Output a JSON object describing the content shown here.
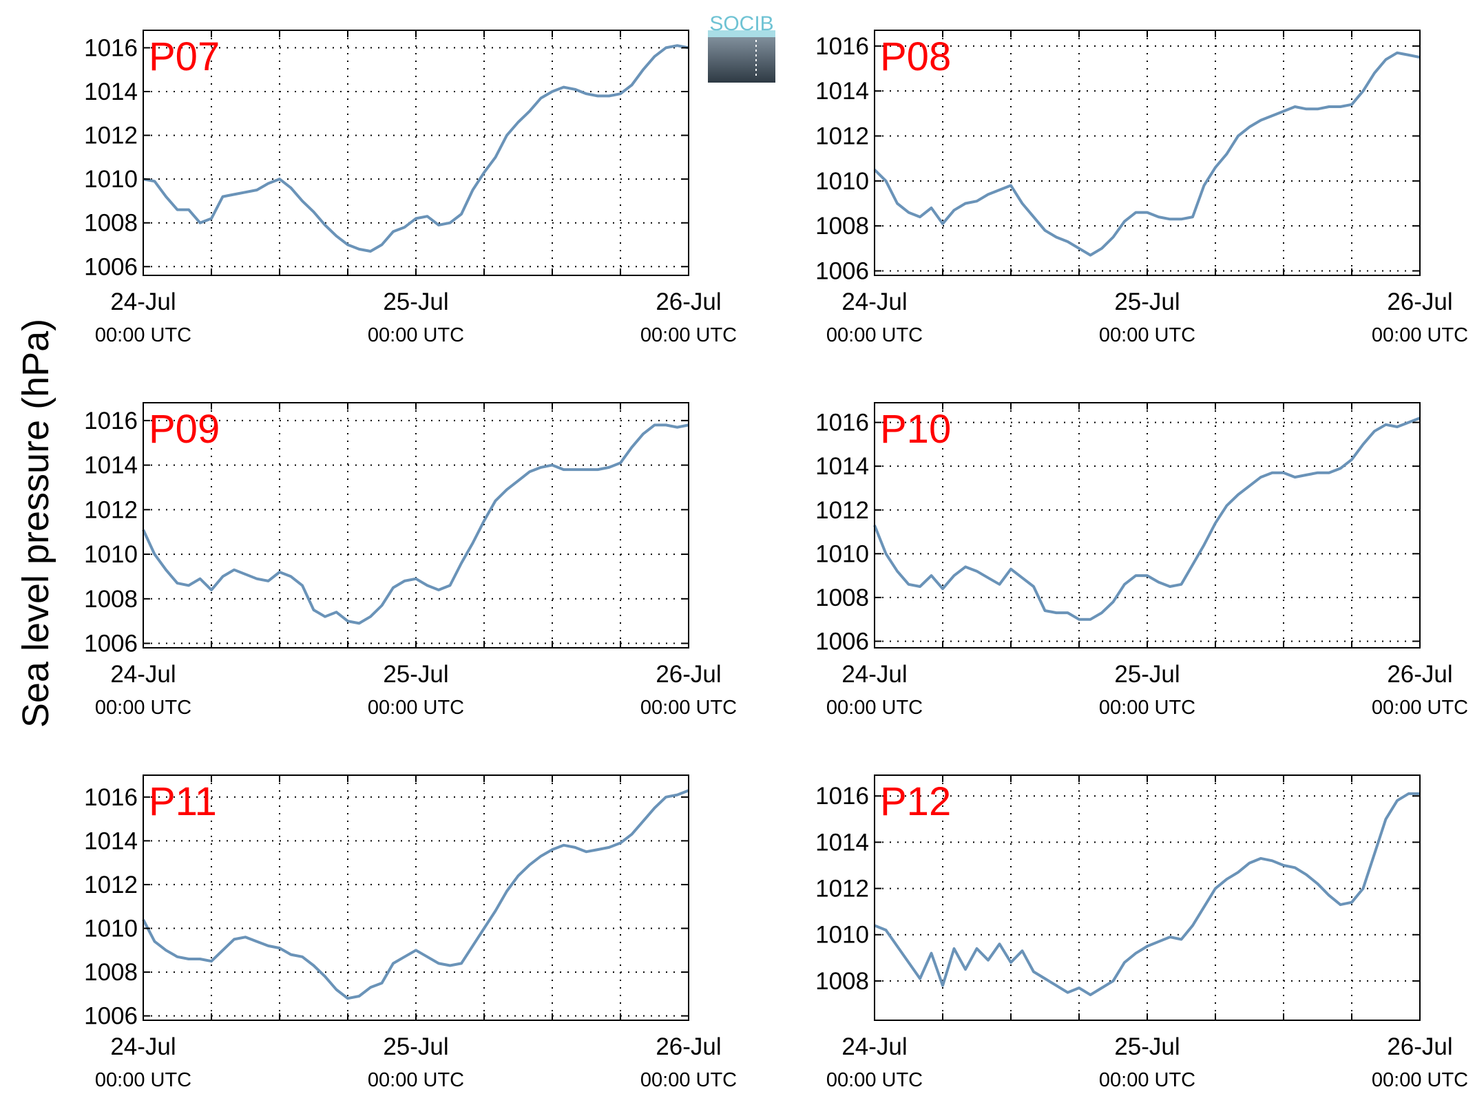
{
  "figure": {
    "ylabel": "Sea level pressure (hPa)",
    "logo_text": "SOCIB",
    "colors": {
      "line": "#6a93b8",
      "panel_label": "#ff0000",
      "grid": "#000000"
    }
  },
  "chart_data": [
    {
      "type": "line",
      "panel_label": "P07",
      "x_ticks": [
        {
          "date": "24-Jul",
          "time": "00:00 UTC"
        },
        {
          "date": "25-Jul",
          "time": "00:00 UTC"
        },
        {
          "date": "26-Jul",
          "time": "00:00 UTC"
        }
      ],
      "y_ticks": [
        1006,
        1008,
        1010,
        1012,
        1014,
        1016
      ],
      "xlim_hours": [
        0,
        48
      ],
      "ylim": [
        1005.6,
        1016.8
      ],
      "grid": true,
      "series": [
        {
          "x_hours": [
            0,
            1,
            2,
            3,
            4,
            5,
            6,
            7,
            8,
            9,
            10,
            11,
            12,
            13,
            14,
            15,
            16,
            17,
            18,
            19,
            20,
            21,
            22,
            23,
            24,
            25,
            26,
            27,
            28,
            29,
            30,
            31,
            32,
            33,
            34,
            35,
            36,
            37,
            38,
            39,
            40,
            41,
            42,
            43,
            44,
            45,
            46,
            47,
            48
          ],
          "values": [
            1010.0,
            1009.9,
            1009.2,
            1008.6,
            1008.6,
            1008.0,
            1008.2,
            1009.2,
            1009.3,
            1009.4,
            1009.5,
            1009.8,
            1010.0,
            1009.6,
            1009.0,
            1008.5,
            1007.9,
            1007.4,
            1007.0,
            1006.8,
            1006.7,
            1007.0,
            1007.6,
            1007.8,
            1008.2,
            1008.3,
            1007.9,
            1008.0,
            1008.4,
            1009.5,
            1010.3,
            1011.0,
            1012.0,
            1012.6,
            1013.1,
            1013.7,
            1014.0,
            1014.2,
            1014.1,
            1013.9,
            1013.8,
            1013.8,
            1013.9,
            1014.3,
            1015.0,
            1015.6,
            1016.0,
            1016.1,
            1016.0
          ]
        }
      ]
    },
    {
      "type": "line",
      "panel_label": "P08",
      "x_ticks": [
        {
          "date": "24-Jul",
          "time": "00:00 UTC"
        },
        {
          "date": "25-Jul",
          "time": "00:00 UTC"
        },
        {
          "date": "26-Jul",
          "time": "00:00 UTC"
        }
      ],
      "y_ticks": [
        1006,
        1008,
        1010,
        1012,
        1014,
        1016
      ],
      "xlim_hours": [
        0,
        48
      ],
      "ylim": [
        1005.8,
        1016.7
      ],
      "grid": true,
      "series": [
        {
          "x_hours": [
            0,
            1,
            2,
            3,
            4,
            5,
            6,
            7,
            8,
            9,
            10,
            11,
            12,
            13,
            14,
            15,
            16,
            17,
            18,
            19,
            20,
            21,
            22,
            23,
            24,
            25,
            26,
            27,
            28,
            29,
            30,
            31,
            32,
            33,
            34,
            35,
            36,
            37,
            38,
            39,
            40,
            41,
            42,
            43,
            44,
            45,
            46,
            47,
            48
          ],
          "values": [
            1010.5,
            1010.0,
            1009.0,
            1008.6,
            1008.4,
            1008.8,
            1008.1,
            1008.7,
            1009.0,
            1009.1,
            1009.4,
            1009.6,
            1009.8,
            1009.0,
            1008.4,
            1007.8,
            1007.5,
            1007.3,
            1007.0,
            1006.7,
            1007.0,
            1007.5,
            1008.2,
            1008.6,
            1008.6,
            1008.4,
            1008.3,
            1008.3,
            1008.4,
            1009.8,
            1010.6,
            1011.2,
            1012.0,
            1012.4,
            1012.7,
            1012.9,
            1013.1,
            1013.3,
            1013.2,
            1013.2,
            1013.3,
            1013.3,
            1013.4,
            1014.0,
            1014.8,
            1015.4,
            1015.7,
            1015.6,
            1015.5
          ]
        }
      ]
    },
    {
      "type": "line",
      "panel_label": "P09",
      "x_ticks": [
        {
          "date": "24-Jul",
          "time": "00:00 UTC"
        },
        {
          "date": "25-Jul",
          "time": "00:00 UTC"
        },
        {
          "date": "26-Jul",
          "time": "00:00 UTC"
        }
      ],
      "y_ticks": [
        1006,
        1008,
        1010,
        1012,
        1014,
        1016
      ],
      "xlim_hours": [
        0,
        48
      ],
      "ylim": [
        1005.8,
        1016.8
      ],
      "grid": true,
      "series": [
        {
          "x_hours": [
            0,
            1,
            2,
            3,
            4,
            5,
            6,
            7,
            8,
            9,
            10,
            11,
            12,
            13,
            14,
            15,
            16,
            17,
            18,
            19,
            20,
            21,
            22,
            23,
            24,
            25,
            26,
            27,
            28,
            29,
            30,
            31,
            32,
            33,
            34,
            35,
            36,
            37,
            38,
            39,
            40,
            41,
            42,
            43,
            44,
            45,
            46,
            47,
            48
          ],
          "values": [
            1011.1,
            1010.0,
            1009.3,
            1008.7,
            1008.6,
            1008.9,
            1008.4,
            1009.0,
            1009.3,
            1009.1,
            1008.9,
            1008.8,
            1009.2,
            1009.0,
            1008.6,
            1007.5,
            1007.2,
            1007.4,
            1007.0,
            1006.9,
            1007.2,
            1007.7,
            1008.5,
            1008.8,
            1008.9,
            1008.6,
            1008.4,
            1008.6,
            1009.6,
            1010.5,
            1011.5,
            1012.4,
            1012.9,
            1013.3,
            1013.7,
            1013.9,
            1014.0,
            1013.8,
            1013.8,
            1013.8,
            1013.8,
            1013.9,
            1014.1,
            1014.8,
            1015.4,
            1015.8,
            1015.8,
            1015.7,
            1015.8
          ]
        }
      ]
    },
    {
      "type": "line",
      "panel_label": "P10",
      "x_ticks": [
        {
          "date": "24-Jul",
          "time": "00:00 UTC"
        },
        {
          "date": "25-Jul",
          "time": "00:00 UTC"
        },
        {
          "date": "26-Jul",
          "time": "00:00 UTC"
        }
      ],
      "y_ticks": [
        1006,
        1008,
        1010,
        1012,
        1014,
        1016
      ],
      "xlim_hours": [
        0,
        48
      ],
      "ylim": [
        1005.7,
        1016.9
      ],
      "grid": true,
      "series": [
        {
          "x_hours": [
            0,
            1,
            2,
            3,
            4,
            5,
            6,
            7,
            8,
            9,
            10,
            11,
            12,
            13,
            14,
            15,
            16,
            17,
            18,
            19,
            20,
            21,
            22,
            23,
            24,
            25,
            26,
            27,
            28,
            29,
            30,
            31,
            32,
            33,
            34,
            35,
            36,
            37,
            38,
            39,
            40,
            41,
            42,
            43,
            44,
            45,
            46,
            47,
            48
          ],
          "values": [
            1011.3,
            1010.0,
            1009.2,
            1008.6,
            1008.5,
            1009.0,
            1008.4,
            1009.0,
            1009.4,
            1009.2,
            1008.9,
            1008.6,
            1009.3,
            1008.9,
            1008.5,
            1007.4,
            1007.3,
            1007.3,
            1007.0,
            1007.0,
            1007.3,
            1007.8,
            1008.6,
            1009.0,
            1009.0,
            1008.7,
            1008.5,
            1008.6,
            1009.5,
            1010.4,
            1011.4,
            1012.2,
            1012.7,
            1013.1,
            1013.5,
            1013.7,
            1013.7,
            1013.5,
            1013.6,
            1013.7,
            1013.7,
            1013.9,
            1014.3,
            1015.0,
            1015.6,
            1015.9,
            1015.8,
            1016.0,
            1016.2
          ]
        }
      ]
    },
    {
      "type": "line",
      "panel_label": "P11",
      "x_ticks": [
        {
          "date": "24-Jul",
          "time": "00:00 UTC"
        },
        {
          "date": "25-Jul",
          "time": "00:00 UTC"
        },
        {
          "date": "26-Jul",
          "time": "00:00 UTC"
        }
      ],
      "y_ticks": [
        1006,
        1008,
        1010,
        1012,
        1014,
        1016
      ],
      "xlim_hours": [
        0,
        48
      ],
      "ylim": [
        1005.8,
        1017.0
      ],
      "grid": true,
      "series": [
        {
          "x_hours": [
            0,
            1,
            2,
            3,
            4,
            5,
            6,
            7,
            8,
            9,
            10,
            11,
            12,
            13,
            14,
            15,
            16,
            17,
            18,
            19,
            20,
            21,
            22,
            23,
            24,
            25,
            26,
            27,
            28,
            29,
            30,
            31,
            32,
            33,
            34,
            35,
            36,
            37,
            38,
            39,
            40,
            41,
            42,
            43,
            44,
            45,
            46,
            47,
            48
          ],
          "values": [
            1010.4,
            1009.4,
            1009.0,
            1008.7,
            1008.6,
            1008.6,
            1008.5,
            1009.0,
            1009.5,
            1009.6,
            1009.4,
            1009.2,
            1009.1,
            1008.8,
            1008.7,
            1008.3,
            1007.8,
            1007.2,
            1006.8,
            1006.9,
            1007.3,
            1007.5,
            1008.4,
            1008.7,
            1009.0,
            1008.7,
            1008.4,
            1008.3,
            1008.4,
            1009.2,
            1010.0,
            1010.8,
            1011.7,
            1012.4,
            1012.9,
            1013.3,
            1013.6,
            1013.8,
            1013.7,
            1013.5,
            1013.6,
            1013.7,
            1013.9,
            1014.3,
            1014.9,
            1015.5,
            1016.0,
            1016.1,
            1016.3
          ]
        }
      ]
    },
    {
      "type": "line",
      "panel_label": "P12",
      "x_ticks": [
        {
          "date": "24-Jul",
          "time": "00:00 UTC"
        },
        {
          "date": "25-Jul",
          "time": "00:00 UTC"
        },
        {
          "date": "26-Jul",
          "time": "00:00 UTC"
        }
      ],
      "y_ticks": [
        1008,
        1010,
        1012,
        1014,
        1016
      ],
      "xlim_hours": [
        0,
        48
      ],
      "ylim": [
        1006.3,
        1016.9
      ],
      "grid": true,
      "series": [
        {
          "x_hours": [
            0,
            1,
            2,
            3,
            4,
            5,
            6,
            7,
            8,
            9,
            10,
            11,
            12,
            13,
            14,
            15,
            16,
            17,
            18,
            19,
            20,
            21,
            22,
            23,
            24,
            25,
            26,
            27,
            28,
            29,
            30,
            31,
            32,
            33,
            34,
            35,
            36,
            37,
            38,
            39,
            40,
            41,
            42,
            43,
            44,
            45,
            46,
            47,
            48
          ],
          "values": [
            1010.4,
            1010.2,
            1009.5,
            1008.8,
            1008.1,
            1009.2,
            1007.8,
            1009.4,
            1008.5,
            1009.4,
            1008.9,
            1009.6,
            1008.8,
            1009.3,
            1008.4,
            1008.1,
            1007.8,
            1007.5,
            1007.7,
            1007.4,
            1007.7,
            1008.0,
            1008.8,
            1009.2,
            1009.5,
            1009.7,
            1009.9,
            1009.8,
            1010.4,
            1011.2,
            1012.0,
            1012.4,
            1012.7,
            1013.1,
            1013.3,
            1013.2,
            1013.0,
            1012.9,
            1012.6,
            1012.2,
            1011.7,
            1011.3,
            1011.4,
            1012.0,
            1013.5,
            1015.0,
            1015.8,
            1016.1,
            1016.1
          ]
        }
      ]
    }
  ]
}
